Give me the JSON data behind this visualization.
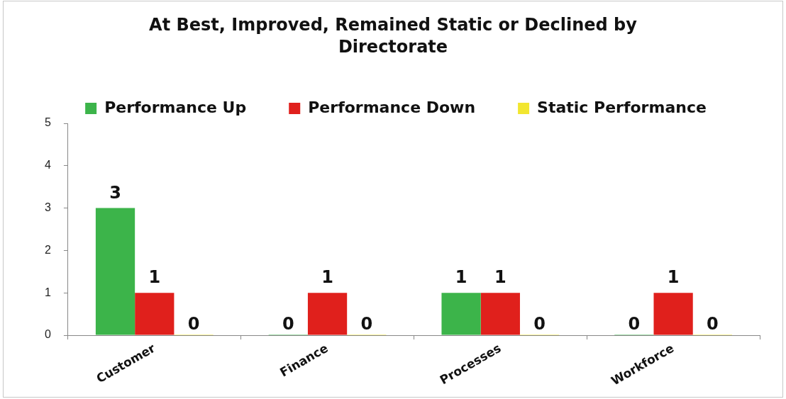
{
  "chart_data": {
    "type": "bar",
    "title": "At Best, Improved, Remained Static or Declined by Directorate",
    "categories": [
      "Customer",
      "Finance",
      "Processes",
      "Workforce"
    ],
    "series": [
      {
        "name": "Performance Up",
        "color": "#3cb44a",
        "values": [
          3,
          0,
          1,
          0
        ]
      },
      {
        "name": "Performance Down",
        "color": "#e0201c",
        "values": [
          1,
          1,
          1,
          1
        ]
      },
      {
        "name": "Static Performance",
        "color": "#f2e630",
        "values": [
          0,
          0,
          0,
          0
        ]
      }
    ],
    "ylim": [
      0,
      5
    ],
    "yticks": [
      0,
      1,
      2,
      3,
      4,
      5
    ],
    "grid": false,
    "legend": "top",
    "data_labels": true
  }
}
